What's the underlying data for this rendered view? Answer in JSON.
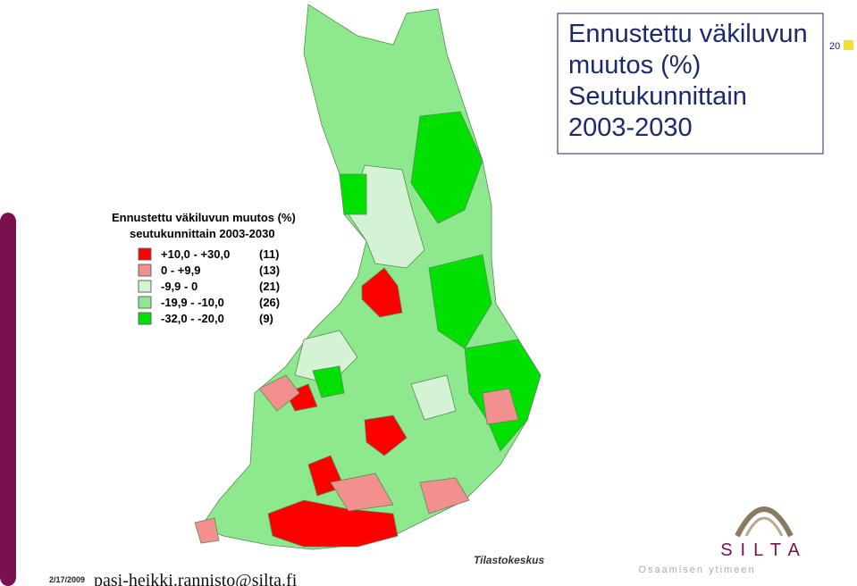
{
  "slide": {
    "title_lines": [
      "Ennustettu väkiluvun",
      "muutos (%)",
      "Seutukunnittain",
      "2003-2030"
    ],
    "page_number": "20",
    "date": "2/17/2009",
    "footer_email": "pasi-heikki.rannisto@silta.fi"
  },
  "map": {
    "legend_title_lines": [
      "Ennustettu väkiluvun muutos (%)",
      "seutukunnittain 2003-2030"
    ],
    "legend": [
      {
        "range": "+10,0 - +30,0",
        "count": "(11)",
        "color": "#ff0000"
      },
      {
        "range": "0   -   +9,9",
        "count": "(13)",
        "color": "#f29090"
      },
      {
        "range": "-9,9 -    0",
        "count": "(21)",
        "color": "#d4f2d4"
      },
      {
        "range": "-19,9 - -10,0",
        "count": "(26)",
        "color": "#8ee88e"
      },
      {
        "range": "-32,0 - -20,0",
        "count": "(9)",
        "color": "#00e000"
      }
    ],
    "source": "Tilastokeskus"
  },
  "logo": {
    "name": "SILTA",
    "tagline": "Osaamisen ytimeen"
  }
}
